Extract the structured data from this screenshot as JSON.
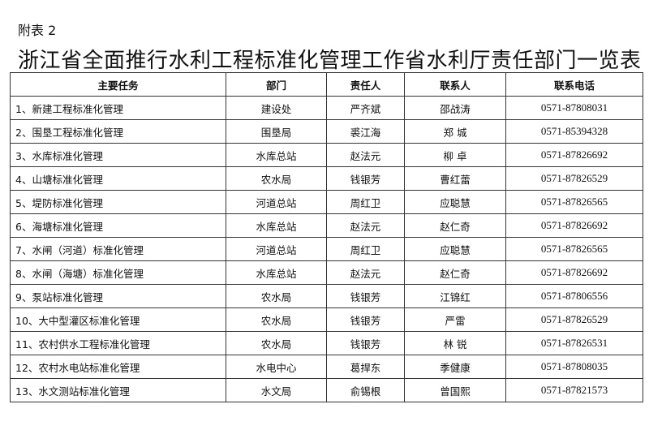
{
  "label": "附表 2",
  "title": "浙江省全面推行水利工程标准化管理工作省水利厅责任部门一览表",
  "headers": [
    "主要任务",
    "部门",
    "责任人",
    "联系人",
    "联系电话"
  ],
  "rows": [
    [
      "1、新建工程标准化管理",
      "建设处",
      "严齐斌",
      "邵战涛",
      "0571-87808031"
    ],
    [
      "2、围垦工程标准化管理",
      "围垦局",
      "裘江海",
      "郑 城",
      "0571-85394328"
    ],
    [
      "3、水库标准化管理",
      "水库总站",
      "赵法元",
      "柳 卓",
      "0571-87826692"
    ],
    [
      "4、山塘标准化管理",
      "农水局",
      "钱银芳",
      "曹红蕾",
      "0571-87826529"
    ],
    [
      "5、堤防标准化管理",
      "河道总站",
      "周红卫",
      "应聪慧",
      "0571-87826565"
    ],
    [
      "6、海塘标准化管理",
      "水库总站",
      "赵法元",
      "赵仁奇",
      "0571-87826692"
    ],
    [
      "7、水闸（河道）标准化管理",
      "河道总站",
      "周红卫",
      "应聪慧",
      "0571-87826565"
    ],
    [
      "8、水闸（海塘）标准化管理",
      "水库总站",
      "赵法元",
      "赵仁奇",
      "0571-87826692"
    ],
    [
      "9、泵站标准化管理",
      "农水局",
      "钱银芳",
      "江锦红",
      "0571-87806556"
    ],
    [
      "10、大中型灌区标准化管理",
      "农水局",
      "钱银芳",
      "严雷",
      "0571-87826529"
    ],
    [
      "11、农村供水工程标准化管理",
      "农水局",
      "钱银芳",
      "林 锐",
      "0571-87826531"
    ],
    [
      "12、农村水电站标准化管理",
      "水电中心",
      "葛捍东",
      "季健康",
      "0571-87808035"
    ],
    [
      "13、水文测站标准化管理",
      "水文局",
      "俞锡根",
      "曾国熙",
      "0571-87821573"
    ]
  ]
}
